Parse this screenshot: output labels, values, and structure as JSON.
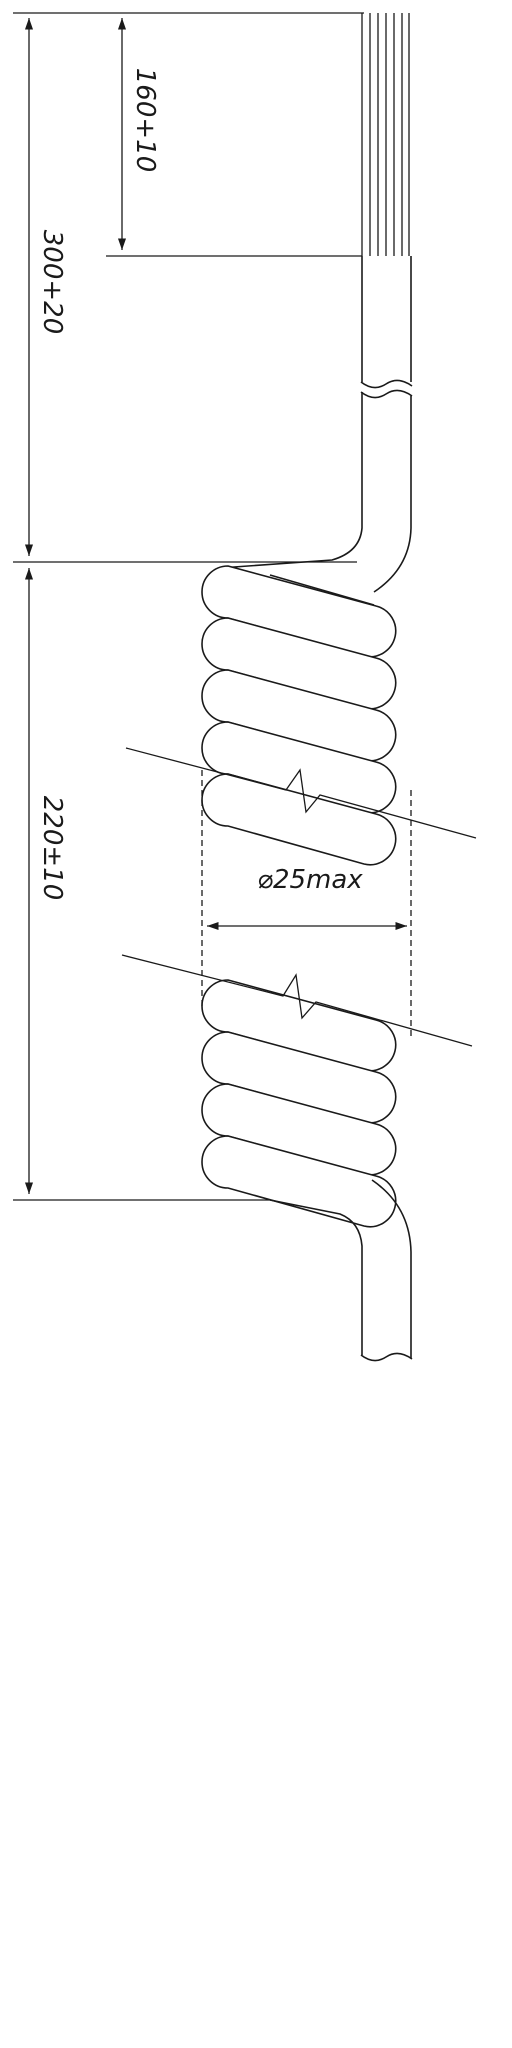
{
  "dimensions": {
    "lead_length": "160+10",
    "straight_length": "300+20",
    "coil_length": "220±10",
    "coil_diameter": "⌀25max"
  },
  "colors": {
    "line": "#1a1a1a",
    "background": "#ffffff"
  }
}
